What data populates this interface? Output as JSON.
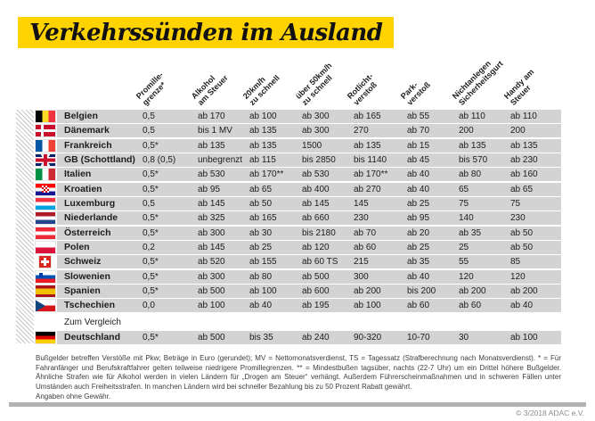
{
  "chart_data": {
    "type": "table",
    "title": "Verkehrssünden im Ausland",
    "columns": [
      {
        "line1": "Promille-",
        "line2": "grenze*"
      },
      {
        "line1": "Alkohol",
        "line2": "am Steuer"
      },
      {
        "line1": "20km/h",
        "line2": "zu schnell"
      },
      {
        "line1": "über 50km/h",
        "line2": "zu schnell"
      },
      {
        "line1": "Rotlicht-",
        "line2": "verstoß"
      },
      {
        "line1": "Park-",
        "line2": "verstoß"
      },
      {
        "line1": "Nichtanlegen",
        "line2": "Sicherheitsgurt"
      },
      {
        "line1": "Handy am",
        "line2": "Steuer"
      }
    ],
    "rows": [
      {
        "country": "Belgien",
        "flag": "be",
        "values": [
          "0,5",
          "ab 170",
          "ab 100",
          "ab 300",
          "ab 165",
          "ab 55",
          "ab 110",
          "ab 110"
        ]
      },
      {
        "country": "Dänemark",
        "flag": "dk",
        "values": [
          "0,5",
          "bis 1 MV",
          "ab 135",
          "ab 300",
          "270",
          "ab 70",
          "200",
          "200"
        ]
      },
      {
        "country": "Frankreich",
        "flag": "fr",
        "values": [
          "0,5*",
          "ab 135",
          "ab 135",
          "1500",
          "ab 135",
          "ab 15",
          "ab 135",
          "ab 135"
        ]
      },
      {
        "country": "GB (Schottland)",
        "flag": "gb",
        "values": [
          "0,8 (0,5)",
          "unbegrenzt",
          "ab 115",
          "bis 2850",
          "bis 1140",
          "ab 45",
          "bis 570",
          "ab 230"
        ]
      },
      {
        "country": "Italien",
        "flag": "it",
        "values": [
          "0,5*",
          "ab 530",
          "ab 170**",
          "ab 530",
          "ab 170**",
          "ab 40",
          "ab 80",
          "ab 160"
        ]
      },
      {
        "country": "Kroatien",
        "flag": "hr",
        "values": [
          "0,5*",
          "ab 95",
          "ab 65",
          "ab 400",
          "ab 270",
          "ab 40",
          "65",
          "ab 65"
        ]
      },
      {
        "country": "Luxemburg",
        "flag": "lu",
        "values": [
          "0,5",
          "ab 145",
          "ab 50",
          "ab 145",
          "145",
          "ab 25",
          "75",
          "75"
        ]
      },
      {
        "country": "Niederlande",
        "flag": "nl",
        "values": [
          "0,5*",
          "ab 325",
          "ab 165",
          "ab 660",
          "230",
          "ab 95",
          "140",
          "230"
        ]
      },
      {
        "country": "Österreich",
        "flag": "at",
        "values": [
          "0,5*",
          "ab 300",
          "ab 30",
          "bis 2180",
          "ab 70",
          "ab 20",
          "ab 35",
          "ab 50"
        ]
      },
      {
        "country": "Polen",
        "flag": "pl",
        "values": [
          "0,2",
          "ab 145",
          "ab 25",
          "ab 120",
          "ab 60",
          "ab 25",
          "25",
          "ab 50"
        ]
      },
      {
        "country": "Schweiz",
        "flag": "ch",
        "values": [
          "0,5*",
          "ab 520",
          "ab 155",
          "ab 60 TS",
          "215",
          "ab 35",
          "55",
          "85"
        ]
      },
      {
        "country": "Slowenien",
        "flag": "si",
        "values": [
          "0,5*",
          "ab 300",
          "ab 80",
          "ab 500",
          "300",
          "ab 40",
          "120",
          "120"
        ]
      },
      {
        "country": "Spanien",
        "flag": "es",
        "values": [
          "0,5*",
          "ab 500",
          "ab 100",
          "ab 600",
          "ab 200",
          "bis 200",
          "ab 200",
          "ab 200"
        ]
      },
      {
        "country": "Tschechien",
        "flag": "cz",
        "values": [
          "0,0",
          "ab 100",
          "ab 40",
          "ab 195",
          "ab 100",
          "ab 60",
          "ab 60",
          "ab 40"
        ]
      }
    ],
    "comparison_label": "Zum Vergleich",
    "comparison_row": {
      "country": "Deutschland",
      "flag": "de",
      "values": [
        "0,5*",
        "ab 500",
        "bis 35",
        "ab 240",
        "90-320",
        "10-70",
        "30",
        "ab 100"
      ]
    },
    "notes": "Bußgelder betreffen Verstöße mit Pkw; Beträge in Euro (gerundet); MV = Nettomonatsverdienst, TS = Tagessatz (Strafberechnung nach Monatsverdienst). * = Für Fahranfänger und Berufskraftfahrer gelten teilweise niedrigere Promillegrenzen. ** = Mindestbußen tagsüber, nachts (22-7 Uhr) um ein Drittel höhere Bußgelder. Ähnliche Strafen wie für Alkohol werden in vielen Ländern für „Drogen am Steuer“ verhängt. Außerdem Führerscheinmaßnahmen und in schweren Fällen unter Umständen auch Freiheitsstrafen. In manchen Ländern wird bei schneller Bezahlung bis zu 50 Prozent Rabatt gewährt.",
    "disclaimer": "Angaben ohne Gewähr.",
    "copyright": "© 3/2018 ADAC e.V."
  },
  "colors": {
    "accent_yellow": "#FFD300",
    "row_gray": "#D3D3D3",
    "text": "#1D1D1B"
  }
}
